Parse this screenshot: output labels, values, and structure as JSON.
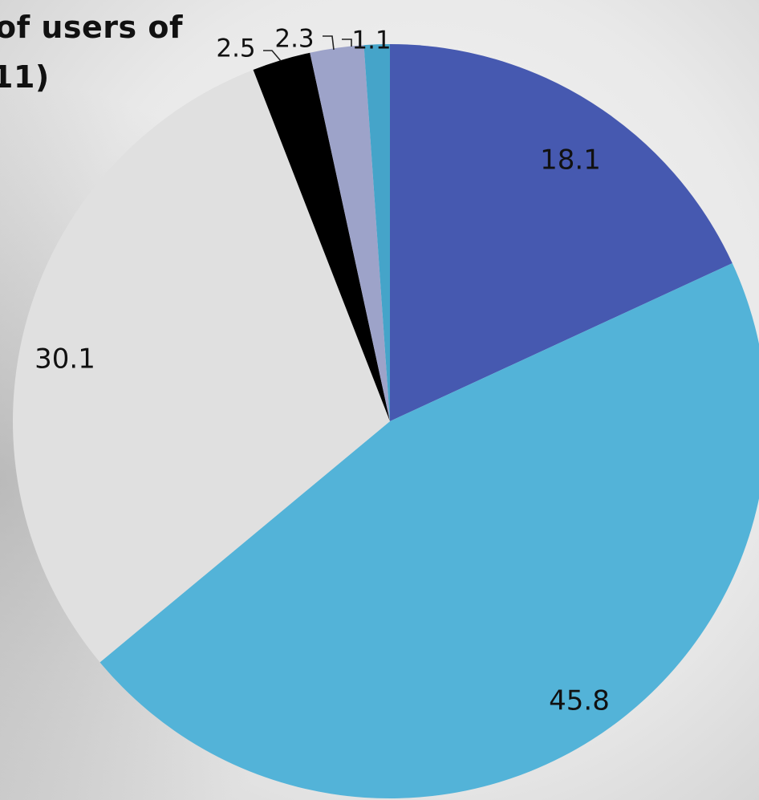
{
  "chart_data": {
    "type": "pie",
    "title_lines": [
      "of  users of",
      "11)"
    ],
    "start_angle_deg": 0,
    "direction": "clockwise",
    "values": [
      18.1,
      45.8,
      30.1,
      2.5,
      2.3,
      1.1
    ],
    "data_labels": [
      "18.1",
      "45.8",
      "30.1",
      "2.5",
      "2.3",
      "1.1"
    ],
    "colors": [
      "#4659B0",
      "#53B3D8",
      "#E0E0E0",
      "#000000",
      "#9DA3C9",
      "#45A4C9"
    ],
    "legend": "none",
    "grid": false
  }
}
